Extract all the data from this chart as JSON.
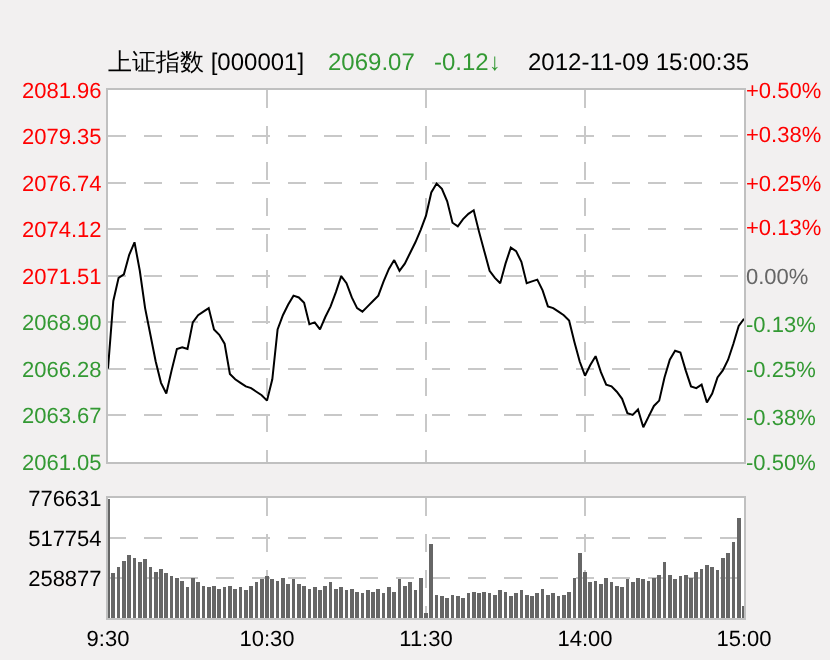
{
  "chart_data": [
    {
      "type": "line",
      "title": "上证指数 [000001]",
      "annotations": [
        "2069.07",
        "-0.12↓",
        "2012-11-09 15:00:35"
      ],
      "categories": [
        null,
        null,
        null,
        null,
        null,
        null,
        null,
        null,
        null,
        null,
        null,
        null,
        null,
        null,
        null,
        null,
        null,
        null,
        null,
        null,
        null,
        null,
        null,
        null,
        null,
        null,
        null,
        null,
        null,
        null,
        null,
        null,
        null,
        null,
        null,
        null,
        null,
        null,
        null,
        null,
        null,
        null,
        null,
        null,
        null,
        null,
        null,
        null,
        null,
        null,
        null,
        null,
        null,
        null,
        null,
        null,
        null,
        null,
        null,
        null,
        null,
        null,
        null,
        null,
        null,
        null,
        null,
        null,
        null,
        null,
        null,
        null,
        null,
        null,
        null,
        null,
        null,
        null,
        null,
        null,
        null,
        null,
        null,
        null,
        null,
        null,
        null,
        null,
        null,
        null,
        null,
        null,
        null,
        null,
        null,
        null,
        null,
        null,
        null,
        null,
        null,
        null,
        null,
        null,
        null,
        null,
        null,
        null,
        null,
        null,
        null,
        null,
        null,
        null,
        null,
        null,
        null,
        null,
        null,
        null,
        null
      ],
      "series": [
        {
          "color": "#000000",
          "values": [
            2066.3,
            2070.1,
            2071.4,
            2071.6,
            2072.7,
            2073.4,
            2071.8,
            2069.7,
            2068.2,
            2066.7,
            2065.5,
            2064.9,
            2066.2,
            2067.4,
            2067.5,
            2067.4,
            2068.9,
            2069.3,
            2069.5,
            2069.7,
            2068.5,
            2068.2,
            2067.7,
            2066,
            2065.7,
            2065.5,
            2065.3,
            2065.2,
            2065,
            2064.8,
            2064.5,
            2065.7,
            2068.5,
            2069.3,
            2069.9,
            2070.4,
            2070.3,
            2070,
            2068.8,
            2068.9,
            2068.5,
            2069.2,
            2069.8,
            2070.6,
            2071.5,
            2071.1,
            2070.3,
            2069.7,
            2069.5,
            2069.8,
            2070.1,
            2070.4,
            2071.2,
            2071.9,
            2072.4,
            2071.8,
            2072.2,
            2072.8,
            2073.4,
            2074.1,
            2074.9,
            2076.2,
            2076.7,
            2076.4,
            2075.7,
            2074.5,
            2074.3,
            2074.7,
            2075,
            2075.2,
            2074,
            2072.9,
            2071.8,
            2071.4,
            2071.1,
            2072.2,
            2073.1,
            2072.9,
            2072.3,
            2071.1,
            2071.2,
            2071.3,
            2070.7,
            2069.8,
            2069.7,
            2069.5,
            2069.3,
            2069,
            2067.8,
            2066.7,
            2065.9,
            2066.5,
            2067,
            2066.1,
            2065.4,
            2065.3,
            2065,
            2064.6,
            2063.8,
            2063.7,
            2064,
            2063,
            2063.6,
            2064.2,
            2064.5,
            2065.8,
            2066.8,
            2067.3,
            2067.2,
            2066.2,
            2065.3,
            2065.2,
            2065.4,
            2064.4,
            2064.9,
            2065.8,
            2066.2,
            2066.8,
            2067.7,
            2068.7,
            2069.1
          ]
        }
      ],
      "ylim": [
        2061.05,
        2081.96
      ],
      "yticks": [
        {
          "value": 2061.05,
          "label": "2061.05"
        },
        {
          "value": 2063.67,
          "label": "2063.67"
        },
        {
          "value": 2066.28,
          "label": "2066.28"
        },
        {
          "value": 2068.9,
          "label": "2068.90"
        },
        {
          "value": 2071.51,
          "label": "2071.51"
        },
        {
          "value": 2074.12,
          "label": "2074.12"
        },
        {
          "value": 2076.74,
          "label": "2076.74"
        },
        {
          "value": 2079.35,
          "label": "2079.35"
        },
        {
          "value": 2081.96,
          "label": "2081.96"
        }
      ],
      "y2lim": [
        -0.5,
        0.5
      ],
      "y2ticks": [
        {
          "value": -0.5,
          "label": "-0.50%"
        },
        {
          "value": -0.38,
          "label": "-0.38%"
        },
        {
          "value": -0.25,
          "label": "-0.25%"
        },
        {
          "value": -0.13,
          "label": "-0.13%"
        },
        {
          "value": 0,
          "label": "0.00%"
        },
        {
          "value": 0.13,
          "label": "+0.13%"
        },
        {
          "value": 0.25,
          "label": "+0.25%"
        },
        {
          "value": 0.38,
          "label": "+0.38%"
        },
        {
          "value": 0.5,
          "label": "+0.50%"
        }
      ],
      "grid": true
    },
    {
      "type": "bar",
      "categories": [
        "9:30",
        null,
        null,
        null,
        null,
        null,
        null,
        null,
        null,
        null,
        null,
        null,
        null,
        null,
        null,
        null,
        null,
        null,
        null,
        null,
        null,
        null,
        null,
        null,
        null,
        null,
        null,
        null,
        null,
        null,
        "10:30",
        null,
        null,
        null,
        null,
        null,
        null,
        null,
        null,
        null,
        null,
        null,
        null,
        null,
        null,
        null,
        null,
        null,
        null,
        null,
        null,
        null,
        null,
        null,
        null,
        null,
        null,
        null,
        null,
        null,
        "11:30",
        null,
        null,
        null,
        null,
        null,
        null,
        null,
        null,
        null,
        null,
        null,
        null,
        null,
        null,
        null,
        null,
        null,
        null,
        null,
        null,
        null,
        null,
        null,
        null,
        null,
        null,
        null,
        null,
        null,
        "14:00",
        null,
        null,
        null,
        null,
        null,
        null,
        null,
        null,
        null,
        null,
        null,
        null,
        null,
        null,
        null,
        null,
        null,
        null,
        null,
        null,
        null,
        null,
        null,
        null,
        null,
        null,
        null,
        null,
        null,
        "15:00"
      ],
      "series": [
        {
          "color": "#666666",
          "values": [
            770000,
            290000,
            330000,
            370000,
            410000,
            390000,
            360000,
            380000,
            330000,
            300000,
            320000,
            290000,
            270000,
            260000,
            240000,
            200000,
            260000,
            230000,
            210000,
            200000,
            210000,
            190000,
            200000,
            210000,
            190000,
            200000,
            180000,
            210000,
            230000,
            250000,
            270000,
            250000,
            240000,
            260000,
            220000,
            250000,
            220000,
            210000,
            190000,
            200000,
            180000,
            210000,
            230000,
            190000,
            200000,
            180000,
            190000,
            170000,
            160000,
            180000,
            170000,
            190000,
            160000,
            200000,
            170000,
            250000,
            210000,
            230000,
            180000,
            260000,
            30000,
            480000,
            150000,
            140000,
            130000,
            150000,
            140000,
            130000,
            160000,
            170000,
            160000,
            170000,
            160000,
            150000,
            180000,
            170000,
            140000,
            160000,
            180000,
            150000,
            140000,
            160000,
            190000,
            150000,
            160000,
            140000,
            150000,
            170000,
            260000,
            420000,
            300000,
            230000,
            240000,
            220000,
            260000,
            230000,
            210000,
            200000,
            250000,
            230000,
            260000,
            250000,
            240000,
            260000,
            280000,
            360000,
            280000,
            250000,
            270000,
            280000,
            260000,
            300000,
            320000,
            340000,
            330000,
            310000,
            390000,
            420000,
            490000,
            650000,
            80000
          ]
        }
      ],
      "ylim": [
        0,
        776631
      ],
      "yticks": [
        {
          "value": 258877,
          "label": "258877"
        },
        {
          "value": 517754,
          "label": "517754"
        },
        {
          "value": 776631,
          "label": "776631"
        }
      ],
      "grid": true
    }
  ]
}
